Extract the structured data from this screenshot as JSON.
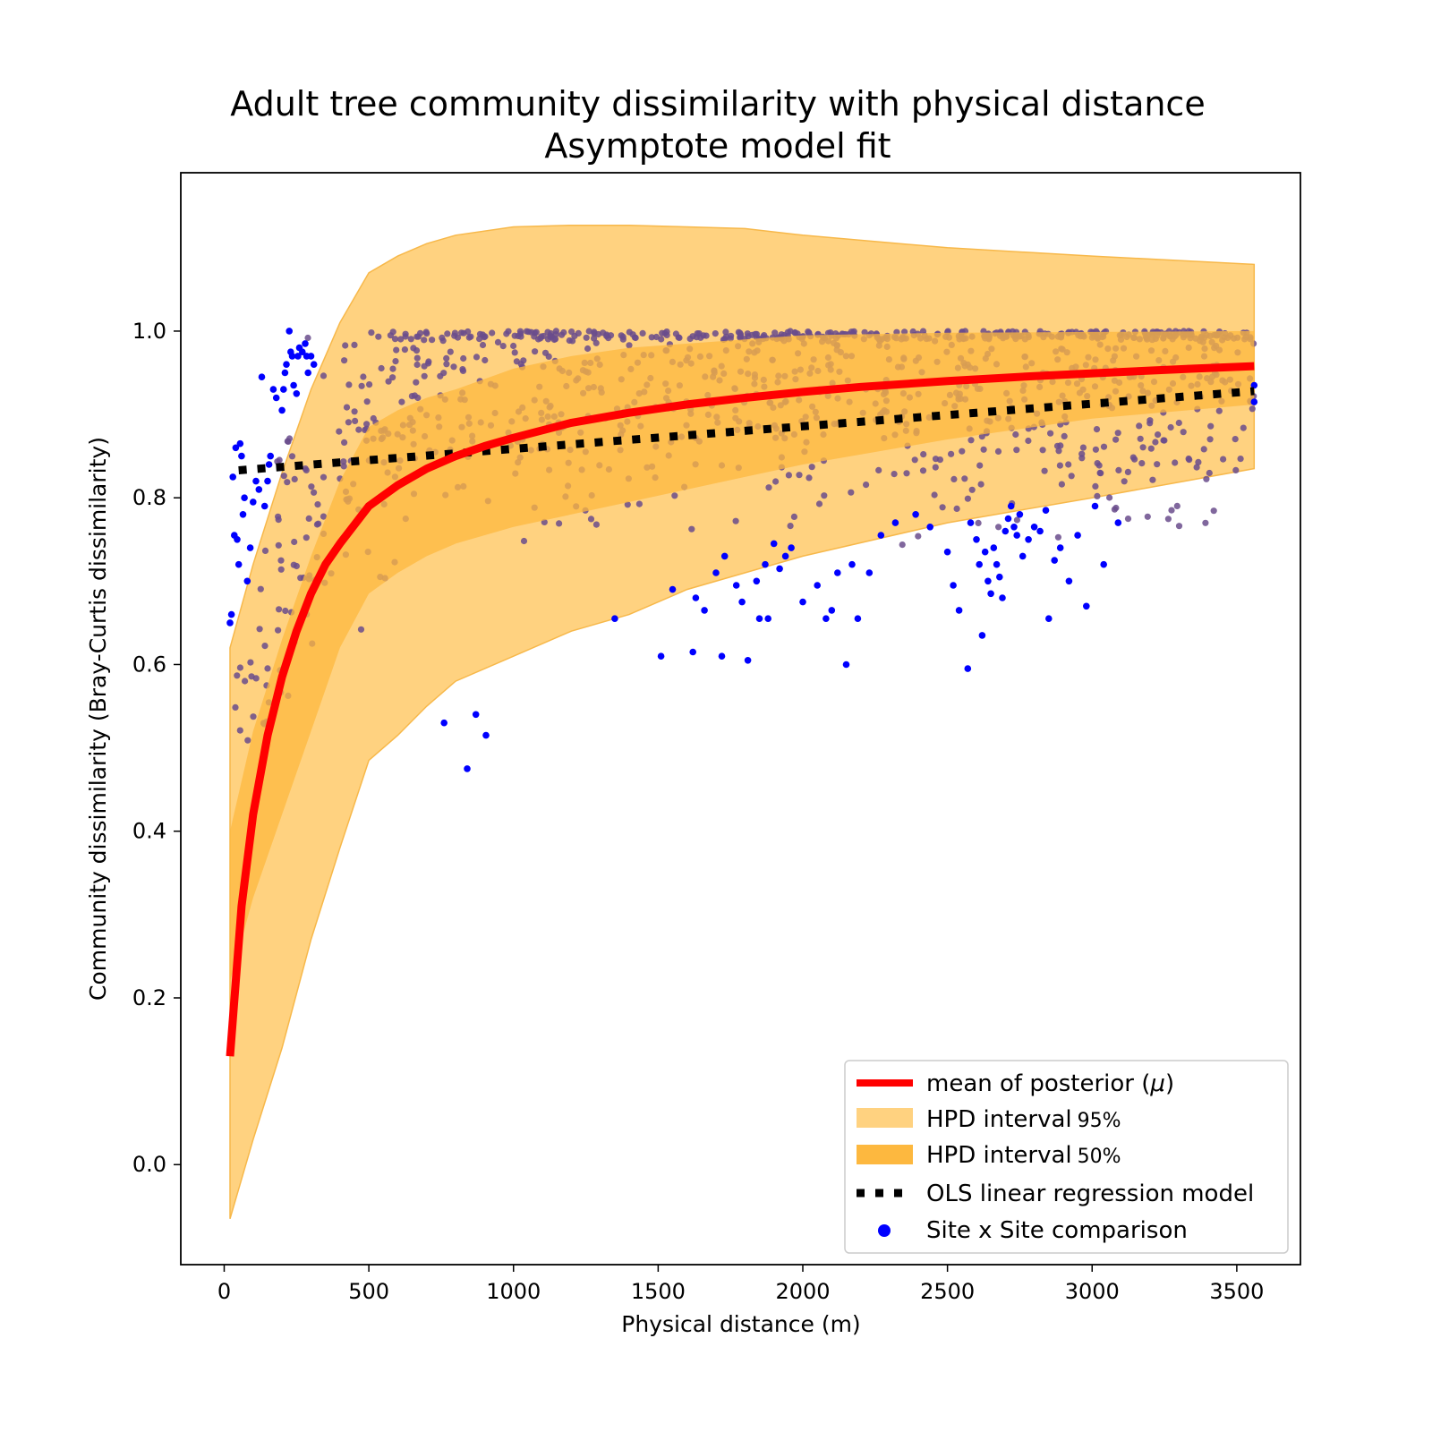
{
  "chart_data": {
    "type": "scatter",
    "title": "Adult tree community dissimilarity with physical distance",
    "subtitle": "Asymptote model fit",
    "xlabel": "Physical distance (m)",
    "ylabel": "Community dissimilarity (Bray-Curtis dissimilarity)",
    "xlim": [
      -150,
      3720
    ],
    "ylim": [
      -0.12,
      1.19
    ],
    "xticks": [
      0,
      500,
      1000,
      1500,
      2000,
      2500,
      3000,
      3500
    ],
    "yticks": [
      0.0,
      0.2,
      0.4,
      0.6,
      0.8,
      1.0
    ],
    "xtick_labels": [
      "0",
      "500",
      "1000",
      "1500",
      "2000",
      "2500",
      "3000",
      "3500"
    ],
    "ytick_labels": [
      "0.0",
      "0.2",
      "0.4",
      "0.6",
      "0.8",
      "1.0"
    ],
    "grid": false,
    "legend_position": "bottom-right",
    "legend": [
      {
        "label": "mean of posterior (",
        "mu": "μ",
        "close": ")",
        "kind": "line",
        "color": "#ff0000"
      },
      {
        "label": "HPD interval",
        "pct": "95%",
        "kind": "patch",
        "color": "#ffd280"
      },
      {
        "label": "HPD interval",
        "pct": "50%",
        "kind": "patch",
        "color": "#fdb83f"
      },
      {
        "label": "OLS linear regression model",
        "kind": "dotted",
        "color": "#000000"
      },
      {
        "label": "Site x Site comparison",
        "kind": "marker",
        "color": "#0000ff"
      }
    ],
    "colors": {
      "posterior_mean": "#ff0000",
      "hpd95": "#ffd280",
      "hpd50": "#fdb83f",
      "ols": "#000000",
      "points": "#0000ff"
    },
    "posterior_mean": {
      "x": [
        20,
        60,
        100,
        150,
        200,
        250,
        300,
        350,
        400,
        500,
        600,
        700,
        800,
        900,
        1000,
        1200,
        1400,
        1600,
        1800,
        2000,
        2200,
        2500,
        2800,
        3100,
        3350,
        3560
      ],
      "y": [
        0.13,
        0.31,
        0.42,
        0.515,
        0.585,
        0.64,
        0.685,
        0.72,
        0.745,
        0.79,
        0.815,
        0.835,
        0.85,
        0.862,
        0.872,
        0.89,
        0.902,
        0.912,
        0.92,
        0.927,
        0.933,
        0.94,
        0.946,
        0.951,
        0.955,
        0.958
      ]
    },
    "hpd95": {
      "x": [
        20,
        100,
        200,
        300,
        400,
        500,
        600,
        700,
        800,
        1000,
        1200,
        1400,
        1600,
        1800,
        2000,
        2500,
        3000,
        3560
      ],
      "upper": [
        0.62,
        0.72,
        0.83,
        0.93,
        1.01,
        1.07,
        1.09,
        1.105,
        1.115,
        1.125,
        1.127,
        1.127,
        1.125,
        1.123,
        1.115,
        1.1,
        1.09,
        1.08
      ],
      "lower": [
        -0.065,
        0.03,
        0.14,
        0.27,
        0.38,
        0.485,
        0.515,
        0.55,
        0.58,
        0.61,
        0.64,
        0.66,
        0.69,
        0.71,
        0.73,
        0.77,
        0.8,
        0.835
      ]
    },
    "hpd50": {
      "x": [
        20,
        100,
        200,
        300,
        400,
        500,
        600,
        700,
        800,
        1000,
        1200,
        1400,
        1600,
        1800,
        2000,
        2500,
        3000,
        3560
      ],
      "upper": [
        0.4,
        0.52,
        0.63,
        0.73,
        0.82,
        0.885,
        0.905,
        0.92,
        0.93,
        0.955,
        0.97,
        0.98,
        0.985,
        0.99,
        0.995,
        0.998,
        0.999,
        1.0
      ],
      "lower": [
        0.22,
        0.32,
        0.42,
        0.52,
        0.62,
        0.685,
        0.71,
        0.73,
        0.745,
        0.765,
        0.78,
        0.795,
        0.81,
        0.825,
        0.84,
        0.87,
        0.895,
        0.912
      ]
    },
    "ols": {
      "x": [
        50,
        3560
      ],
      "y": [
        0.833,
        0.928
      ]
    },
    "site_comparison_points": [
      [
        20,
        0.65
      ],
      [
        25,
        0.66
      ],
      [
        30,
        0.825
      ],
      [
        35,
        0.755
      ],
      [
        40,
        0.86
      ],
      [
        45,
        0.75
      ],
      [
        50,
        0.72
      ],
      [
        55,
        0.865
      ],
      [
        60,
        0.85
      ],
      [
        65,
        0.78
      ],
      [
        70,
        0.8
      ],
      [
        80,
        0.7
      ],
      [
        90,
        0.74
      ],
      [
        100,
        0.795
      ],
      [
        110,
        0.82
      ],
      [
        120,
        0.81
      ],
      [
        130,
        0.945
      ],
      [
        140,
        0.79
      ],
      [
        150,
        0.82
      ],
      [
        155,
        0.84
      ],
      [
        160,
        0.85
      ],
      [
        170,
        0.93
      ],
      [
        180,
        0.92
      ],
      [
        200,
        0.905
      ],
      [
        205,
        0.93
      ],
      [
        210,
        0.95
      ],
      [
        215,
        0.96
      ],
      [
        225,
        1.0
      ],
      [
        230,
        0.975
      ],
      [
        235,
        0.97
      ],
      [
        240,
        0.935
      ],
      [
        250,
        0.925
      ],
      [
        255,
        0.97
      ],
      [
        260,
        0.98
      ],
      [
        270,
        0.975
      ],
      [
        280,
        0.985
      ],
      [
        285,
        0.97
      ],
      [
        290,
        0.95
      ],
      [
        300,
        0.97
      ],
      [
        310,
        0.96
      ],
      [
        760,
        0.53
      ],
      [
        840,
        0.475
      ],
      [
        870,
        0.54
      ],
      [
        905,
        0.515
      ],
      [
        1350,
        0.655
      ],
      [
        1510,
        0.61
      ],
      [
        1550,
        0.69
      ],
      [
        1620,
        0.615
      ],
      [
        1630,
        0.68
      ],
      [
        1660,
        0.665
      ],
      [
        1700,
        0.71
      ],
      [
        1720,
        0.61
      ],
      [
        1730,
        0.73
      ],
      [
        1770,
        0.695
      ],
      [
        1790,
        0.675
      ],
      [
        1810,
        0.605
      ],
      [
        1840,
        0.7
      ],
      [
        1850,
        0.655
      ],
      [
        1870,
        0.72
      ],
      [
        1880,
        0.655
      ],
      [
        1900,
        0.745
      ],
      [
        1920,
        0.715
      ],
      [
        1940,
        0.73
      ],
      [
        1960,
        0.74
      ],
      [
        2000,
        0.675
      ],
      [
        2050,
        0.695
      ],
      [
        2080,
        0.655
      ],
      [
        2100,
        0.665
      ],
      [
        2120,
        0.71
      ],
      [
        2150,
        0.6
      ],
      [
        2170,
        0.72
      ],
      [
        2190,
        0.655
      ],
      [
        2230,
        0.71
      ],
      [
        2270,
        0.755
      ],
      [
        2320,
        0.77
      ],
      [
        2390,
        0.78
      ],
      [
        2440,
        0.765
      ],
      [
        2500,
        0.735
      ],
      [
        2520,
        0.695
      ],
      [
        2540,
        0.665
      ],
      [
        2570,
        0.595
      ],
      [
        2580,
        0.77
      ],
      [
        2600,
        0.75
      ],
      [
        2610,
        0.72
      ],
      [
        2620,
        0.635
      ],
      [
        2630,
        0.735
      ],
      [
        2640,
        0.7
      ],
      [
        2650,
        0.685
      ],
      [
        2660,
        0.74
      ],
      [
        2670,
        0.72
      ],
      [
        2680,
        0.705
      ],
      [
        2690,
        0.68
      ],
      [
        2700,
        0.76
      ],
      [
        2710,
        0.775
      ],
      [
        2720,
        0.79
      ],
      [
        2730,
        0.765
      ],
      [
        2740,
        0.755
      ],
      [
        2750,
        0.78
      ],
      [
        2760,
        0.73
      ],
      [
        2780,
        0.75
      ],
      [
        2800,
        0.765
      ],
      [
        2820,
        0.76
      ],
      [
        2840,
        0.785
      ],
      [
        2850,
        0.655
      ],
      [
        2870,
        0.725
      ],
      [
        2890,
        0.74
      ],
      [
        2920,
        0.7
      ],
      [
        2950,
        0.755
      ],
      [
        2980,
        0.67
      ],
      [
        3010,
        0.79
      ],
      [
        3040,
        0.72
      ],
      [
        3090,
        0.77
      ],
      [
        3560,
        0.915
      ],
      [
        3560,
        0.935
      ]
    ],
    "purple_point_cloud_color": "#6a4c8c"
  }
}
